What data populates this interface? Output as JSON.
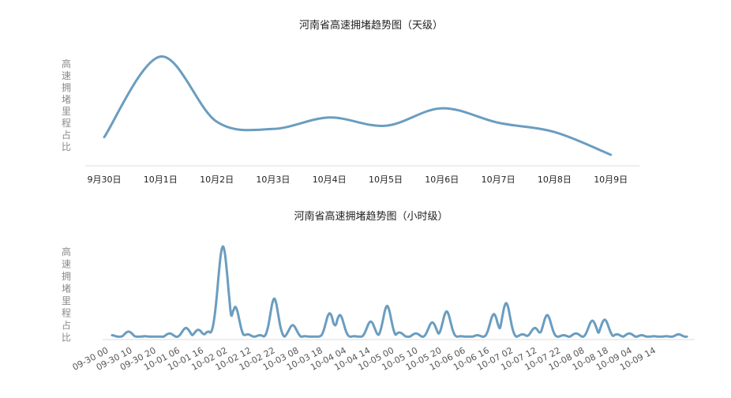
{
  "chart_data": [
    {
      "type": "line",
      "title": "河南省高速拥堵趋势图（天级）",
      "ylabel": "高速拥堵里程占比",
      "xlabel": "",
      "categories": [
        "9月30日",
        "10月1日",
        "10月2日",
        "10月3日",
        "10月4日",
        "10月5日",
        "10月6日",
        "10月7日",
        "10月8日",
        "10月9日"
      ],
      "values": [
        0.17,
        0.95,
        0.32,
        0.25,
        0.36,
        0.28,
        0.45,
        0.31,
        0.22,
        0.0
      ],
      "ylim": [
        0,
        1
      ],
      "grid": false,
      "smooth": true,
      "color": "#6a9dc0"
    },
    {
      "type": "line",
      "title": "河南省高速拥堵趋势图（小时级）",
      "ylabel": "高速拥堵里程占比",
      "xlabel": "",
      "categories": [
        "09-30 00",
        "09-30 10",
        "09-30 20",
        "10-01 06",
        "10-01 16",
        "10-02 02",
        "10-02 12",
        "10-02 22",
        "10-03 08",
        "10-03 18",
        "10-04 04",
        "10-04 14",
        "10-05 00",
        "10-05 10",
        "10-05 20",
        "10-06 06",
        "10-06 16",
        "10-07 02",
        "10-07 12",
        "10-07 22",
        "10-08 08",
        "10-08 18",
        "10-09 04",
        "10-09 14"
      ],
      "peaks": [
        [
          0,
          0.03
        ],
        [
          8,
          0.07
        ],
        [
          16,
          0.02
        ],
        [
          28,
          0.05
        ],
        [
          36,
          0.11
        ],
        [
          42,
          0.09
        ],
        [
          47,
          0.07
        ],
        [
          54,
          1.0
        ],
        [
          60,
          0.34
        ],
        [
          66,
          0.04
        ],
        [
          72,
          0.03
        ],
        [
          79,
          0.43
        ],
        [
          88,
          0.14
        ],
        [
          94,
          0.02
        ],
        [
          102,
          0.02
        ],
        [
          106,
          0.27
        ],
        [
          111,
          0.25
        ],
        [
          118,
          0.02
        ],
        [
          126,
          0.18
        ],
        [
          134,
          0.35
        ],
        [
          140,
          0.06
        ],
        [
          148,
          0.05
        ],
        [
          156,
          0.17
        ],
        [
          163,
          0.29
        ],
        [
          170,
          0.02
        ],
        [
          178,
          0.03
        ],
        [
          186,
          0.26
        ],
        [
          192,
          0.38
        ],
        [
          200,
          0.04
        ],
        [
          206,
          0.11
        ],
        [
          212,
          0.25
        ],
        [
          220,
          0.03
        ],
        [
          226,
          0.05
        ],
        [
          234,
          0.19
        ],
        [
          240,
          0.2
        ],
        [
          246,
          0.04
        ],
        [
          252,
          0.05
        ],
        [
          258,
          0.03
        ],
        [
          264,
          0.02
        ],
        [
          270,
          0.02
        ],
        [
          276,
          0.04
        ]
      ],
      "ylim": [
        0,
        1
      ],
      "grid": false,
      "smooth": true,
      "color": "#6a9dc0"
    }
  ]
}
